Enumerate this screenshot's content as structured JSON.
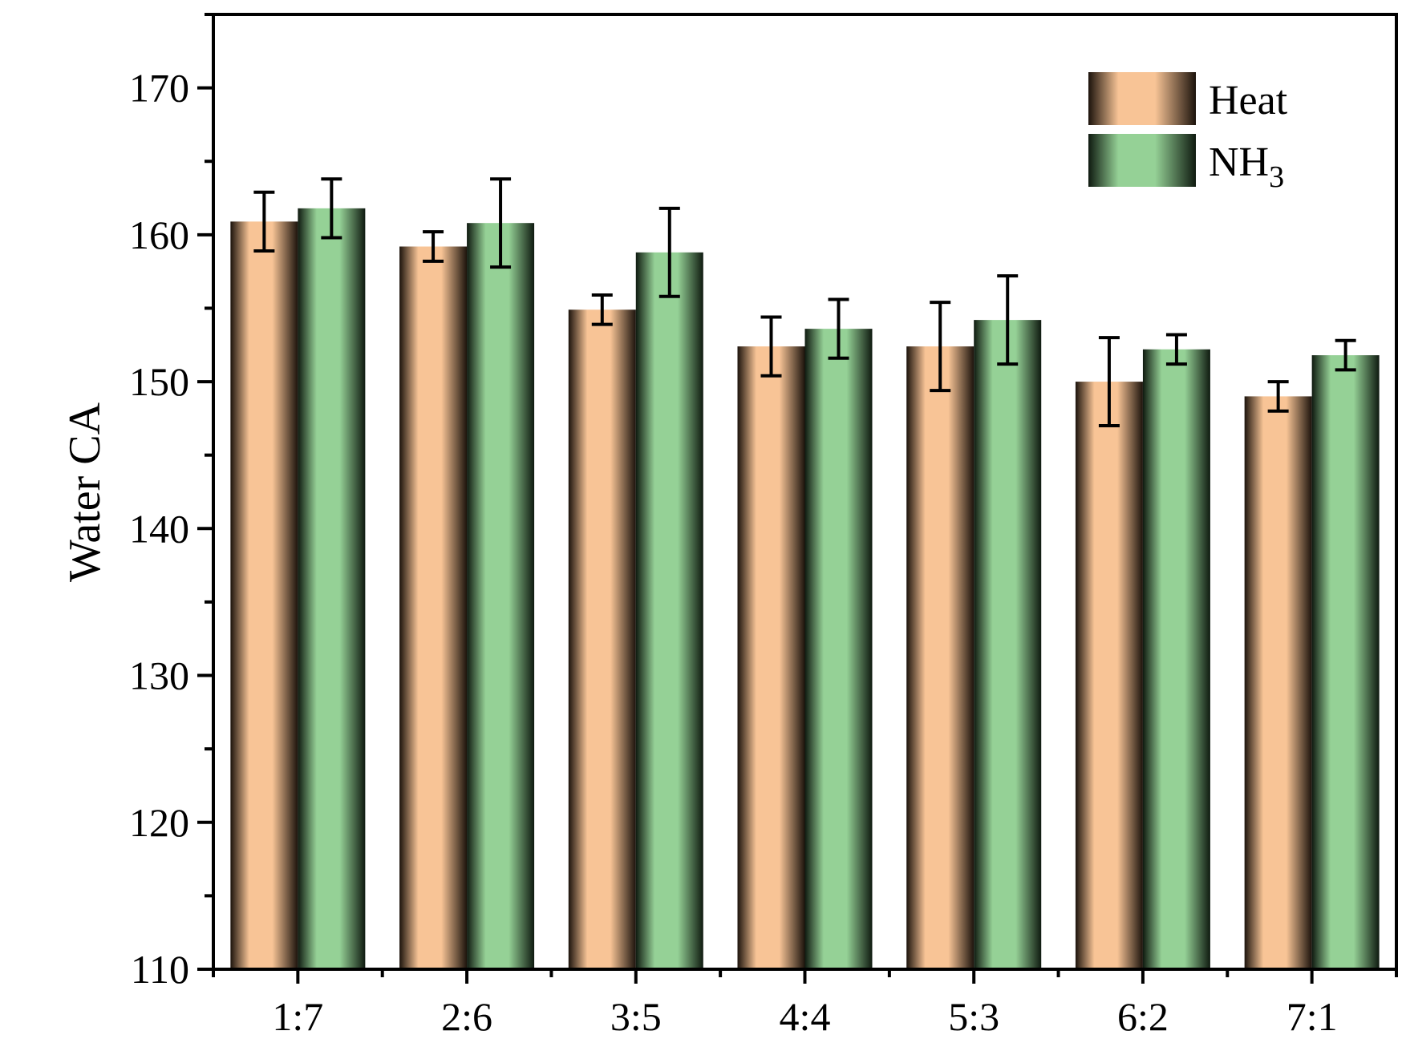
{
  "chart_data": {
    "type": "bar",
    "title": "",
    "xlabel": "",
    "ylabel": "Water CA",
    "ylim": [
      110,
      175
    ],
    "yticks": [
      110,
      120,
      130,
      140,
      150,
      160,
      170
    ],
    "grid": false,
    "legend_position": "top-right",
    "categories": [
      "1:7",
      "2:6",
      "3:5",
      "4:4",
      "5:3",
      "6:2",
      "7:1"
    ],
    "series": [
      {
        "name": "Heat",
        "color": "#F8C496",
        "values": [
          160.9,
          159.2,
          154.9,
          152.4,
          152.4,
          150.0,
          149.0
        ],
        "errors": [
          2.0,
          1.0,
          1.0,
          2.0,
          3.0,
          3.0,
          1.0
        ]
      },
      {
        "name": "NH",
        "name_subscript": "3",
        "color": "#95D196",
        "values": [
          161.8,
          160.8,
          158.8,
          153.6,
          154.2,
          152.2,
          151.8
        ],
        "errors": [
          2.0,
          3.0,
          3.0,
          2.0,
          3.0,
          1.0,
          1.0
        ]
      }
    ]
  }
}
